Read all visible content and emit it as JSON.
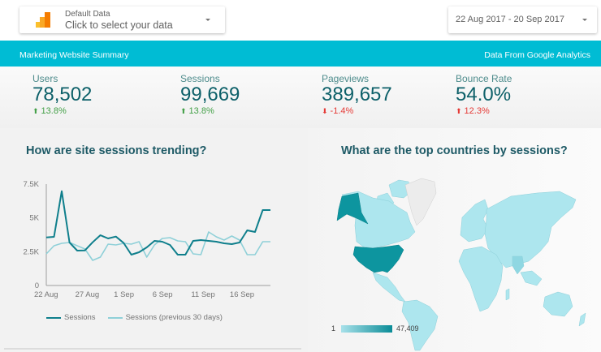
{
  "data_source": {
    "label": "Default Data",
    "value": "Click to select your data",
    "icon": "analytics-bars-icon"
  },
  "date_range": {
    "value": "22 Aug 2017 - 20 Sep 2017"
  },
  "banner": {
    "title": "Marketing Website Summary",
    "source": "Data From Google Analytics",
    "color": "#00bcd4"
  },
  "kpis": [
    {
      "label": "Users",
      "value": "78,502",
      "delta": "13.8%",
      "direction": "up"
    },
    {
      "label": "Sessions",
      "value": "99,669",
      "delta": "13.8%",
      "direction": "up"
    },
    {
      "label": "Pageviews",
      "value": "389,657",
      "delta": "-1.4%",
      "direction": "down"
    },
    {
      "label": "Bounce Rate",
      "value": "54.0%",
      "delta": "12.3%",
      "direction": "up"
    }
  ],
  "trend_panel": {
    "title": "How are site sessions trending?",
    "legend": [
      "Sessions",
      "Sessions (previous 30 days)"
    ]
  },
  "map_panel": {
    "title": "What are the top countries by sessions?",
    "legend_min": "1",
    "legend_max": "47,409"
  },
  "chart_data": {
    "type": "line",
    "title": "How are site sessions trending?",
    "xlabel": "",
    "ylabel": "",
    "ylim": [
      0,
      7500
    ],
    "yticks": [
      "0",
      "2.5K",
      "5K",
      "7.5K"
    ],
    "xticks": [
      "22 Aug",
      "27 Aug",
      "1 Sep",
      "6 Sep",
      "11 Sep",
      "16 Sep"
    ],
    "x": [
      "22 Aug",
      "23 Aug",
      "24 Aug",
      "25 Aug",
      "26 Aug",
      "27 Aug",
      "28 Aug",
      "29 Aug",
      "30 Aug",
      "31 Aug",
      "1 Sep",
      "2 Sep",
      "3 Sep",
      "4 Sep",
      "5 Sep",
      "6 Sep",
      "7 Sep",
      "8 Sep",
      "9 Sep",
      "10 Sep",
      "11 Sep",
      "12 Sep",
      "13 Sep",
      "14 Sep",
      "15 Sep",
      "16 Sep",
      "17 Sep",
      "18 Sep",
      "19 Sep",
      "20 Sep"
    ],
    "series": [
      {
        "name": "Sessions",
        "color": "#0f7f8c",
        "values": [
          3560,
          3600,
          6980,
          3180,
          2580,
          2600,
          3200,
          3720,
          3480,
          3620,
          3150,
          2280,
          2460,
          2820,
          3300,
          3240,
          3000,
          2280,
          2280,
          3300,
          3360,
          3300,
          3240,
          3120,
          3060,
          3180,
          4080,
          3960,
          5580,
          5580
        ]
      },
      {
        "name": "Sessions (previous 30 days)",
        "color": "#8fd0d8",
        "values": [
          2340,
          2940,
          3120,
          3180,
          2940,
          2700,
          1860,
          2100,
          3060,
          3000,
          3120,
          3060,
          3240,
          2100,
          3000,
          3480,
          3540,
          3300,
          3240,
          2340,
          2280,
          3960,
          3600,
          3360,
          3660,
          3360,
          2280,
          2280,
          3240,
          3240
        ]
      }
    ],
    "legend_position": "bottom",
    "grid": false
  }
}
